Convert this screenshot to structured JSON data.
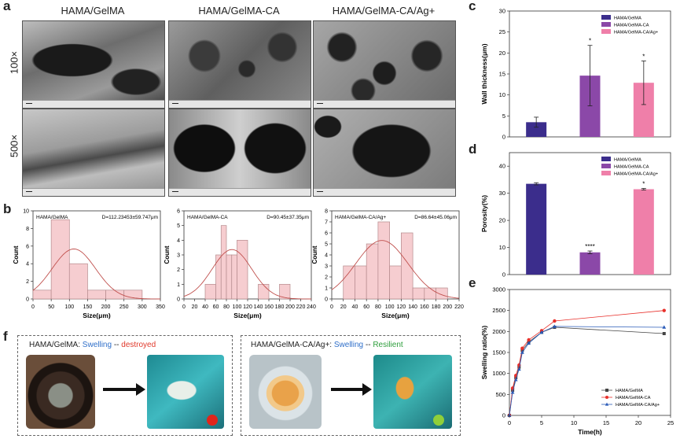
{
  "panel_labels": {
    "a": "a",
    "b": "b",
    "c": "c",
    "d": "d",
    "e": "e",
    "f": "f"
  },
  "sem": {
    "columns": [
      "HAMA/GelMA",
      "HAMA/GelMA-CA",
      "HAMA/GelMA-CA/Ag+"
    ],
    "rows": [
      "100×",
      "500×"
    ]
  },
  "panel_f": {
    "left_prefix": "HAMA/GelMA: ",
    "left_swell": "Swelling",
    "left_sep": " -- ",
    "left_state": "destroyed",
    "right_prefix": "HAMA/GelMA-CA/Ag+: ",
    "right_swell": "Swelling",
    "right_sep": " -- ",
    "right_state": "Resilient",
    "colors": {
      "swell": "#2f6fc9",
      "destroyed": "#e0392b",
      "resilient": "#2e9e3c"
    }
  },
  "chart_data": [
    {
      "id": "b1",
      "type": "bar",
      "title": "HAMA/GelMA",
      "annotation": "D=112.23453±59.747μm",
      "xlabel": "Size(μm)",
      "ylabel": "Count",
      "bins": [
        [
          0,
          50,
          1
        ],
        [
          50,
          100,
          9
        ],
        [
          100,
          150,
          4
        ],
        [
          150,
          200,
          1
        ],
        [
          200,
          250,
          1
        ],
        [
          250,
          300,
          1
        ]
      ],
      "xticks": [
        0,
        50,
        100,
        150,
        200,
        250,
        300,
        350
      ],
      "yticks": [
        0,
        2,
        4,
        6,
        8,
        10
      ],
      "xlim": [
        0,
        350
      ],
      "ylim": [
        0,
        10
      ],
      "fit": {
        "mean": 112.23453,
        "sd": 59.747
      }
    },
    {
      "id": "b2",
      "type": "bar",
      "title": "HAMA/GelMA-CA",
      "annotation": "D=90.45±37.35μm",
      "xlabel": "Size(μm)",
      "ylabel": "Count",
      "bins": [
        [
          40,
          60,
          1
        ],
        [
          60,
          70,
          3
        ],
        [
          70,
          80,
          5
        ],
        [
          80,
          90,
          3
        ],
        [
          90,
          100,
          3
        ],
        [
          100,
          120,
          4
        ],
        [
          140,
          160,
          1
        ],
        [
          180,
          200,
          1
        ]
      ],
      "xticks": [
        0,
        20,
        40,
        60,
        80,
        100,
        120,
        140,
        160,
        180,
        200,
        220,
        240
      ],
      "yticks": [
        0,
        1,
        2,
        3,
        4,
        5,
        6
      ],
      "xlim": [
        0,
        240
      ],
      "ylim": [
        0,
        6
      ],
      "fit": {
        "mean": 90.45,
        "sd": 37.35
      }
    },
    {
      "id": "b3",
      "type": "bar",
      "title": "HAMA/GelMA-CA/Ag+",
      "annotation": "D=86.64±45.06μm",
      "xlabel": "Size(μm)",
      "ylabel": "Count",
      "bins": [
        [
          20,
          40,
          3
        ],
        [
          40,
          60,
          3
        ],
        [
          60,
          80,
          5
        ],
        [
          80,
          100,
          7
        ],
        [
          100,
          120,
          3
        ],
        [
          120,
          140,
          6
        ],
        [
          140,
          160,
          1
        ],
        [
          160,
          180,
          1
        ],
        [
          180,
          200,
          1
        ]
      ],
      "xticks": [
        0,
        20,
        40,
        60,
        80,
        100,
        120,
        140,
        160,
        180,
        200,
        220
      ],
      "yticks": [
        0,
        1,
        2,
        3,
        4,
        5,
        6,
        7,
        8
      ],
      "xlim": [
        0,
        220
      ],
      "ylim": [
        0,
        8
      ],
      "fit": {
        "mean": 86.64,
        "sd": 45.06
      }
    },
    {
      "id": "c",
      "type": "bar",
      "ylabel": "Wall thickness(μm)",
      "categories": [
        "HAMA/GelMA",
        "HAMA/GelMA-CA",
        "HAMA/GelMA-CA/Ag+"
      ],
      "values": [
        3.5,
        14.6,
        12.9
      ],
      "errors": [
        1.2,
        7.2,
        5.2
      ],
      "annotations": [
        "",
        "*",
        "*"
      ],
      "colors": [
        "#3b2d8c",
        "#8b48a8",
        "#ef7fa9"
      ],
      "yticks": [
        0,
        5,
        10,
        15,
        20,
        25,
        30
      ],
      "ylim": [
        0,
        30
      ],
      "legend": "top-right"
    },
    {
      "id": "d",
      "type": "bar",
      "ylabel": "Porosity(%)",
      "categories": [
        "HAMA/GelMA",
        "HAMA/GelMA-CA",
        "HAMA/GelMA-CA/Ag+"
      ],
      "values": [
        33.5,
        8.2,
        31.5
      ],
      "errors": [
        0.4,
        0.5,
        0.3
      ],
      "annotations": [
        "",
        "****",
        "*"
      ],
      "colors": [
        "#3b2d8c",
        "#8b48a8",
        "#ef7fa9"
      ],
      "yticks": [
        0,
        10,
        20,
        30,
        40
      ],
      "ylim": [
        0,
        45
      ],
      "legend": "top-right"
    },
    {
      "id": "e",
      "type": "line",
      "xlabel": "Time(h)",
      "ylabel": "Swelling ratio(%)",
      "x": [
        0,
        0.5,
        1,
        1.5,
        2,
        3,
        5,
        7,
        24
      ],
      "series": [
        {
          "name": "HAMA/GelMA",
          "color": "#444444",
          "marker": "square",
          "values": [
            0,
            600,
            900,
            1150,
            1550,
            1750,
            1980,
            2100,
            1950
          ]
        },
        {
          "name": "HAMA/GelMA-CA",
          "color": "#e8302b",
          "marker": "circle",
          "values": [
            0,
            650,
            950,
            1200,
            1600,
            1800,
            2020,
            2250,
            2500
          ]
        },
        {
          "name": "HAMA/GelMA-CA/Ag+",
          "color": "#2a5bb8",
          "marker": "triangle",
          "values": [
            0,
            550,
            850,
            1100,
            1500,
            1720,
            1980,
            2120,
            2100
          ]
        }
      ],
      "xticks": [
        0,
        5,
        10,
        15,
        20,
        25
      ],
      "yticks": [
        0,
        500,
        1000,
        1500,
        2000,
        2500,
        3000
      ],
      "xlim": [
        0,
        25
      ],
      "ylim": [
        0,
        3000
      ],
      "legend": "bottom-right"
    }
  ]
}
